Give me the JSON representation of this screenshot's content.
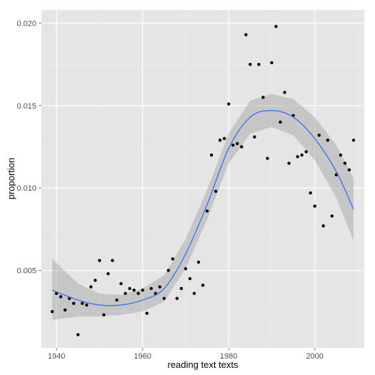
{
  "chart_data": {
    "type": "scatter",
    "xlabel": "reading text texts",
    "ylabel": "proportion",
    "xlim": [
      1936.5,
      2011.5
    ],
    "ylim": [
      0.0003,
      0.0208
    ],
    "x_ticks": [
      1940,
      1960,
      1980,
      2000
    ],
    "x_tick_labels": [
      "1940",
      "1960",
      "1980",
      "2000"
    ],
    "y_ticks": [
      0.005,
      0.01,
      0.015,
      0.02
    ],
    "y_tick_labels": [
      "0.005",
      "0.010",
      "0.015",
      "0.020"
    ],
    "grid": true,
    "colors": {
      "panel_background": "#e5e5e5",
      "grid_major": "#ffffff",
      "grid_minor": "#f2f2f2",
      "points": "#000000",
      "smooth_line": "#3366ff",
      "confidence_band": "#999999"
    },
    "points": [
      {
        "x": 1939,
        "y": 0.0025
      },
      {
        "x": 1940,
        "y": 0.0036
      },
      {
        "x": 1941,
        "y": 0.0034
      },
      {
        "x": 1942,
        "y": 0.0026
      },
      {
        "x": 1943,
        "y": 0.0033
      },
      {
        "x": 1944,
        "y": 0.003
      },
      {
        "x": 1945,
        "y": 0.0011
      },
      {
        "x": 1946,
        "y": 0.003
      },
      {
        "x": 1947,
        "y": 0.0029
      },
      {
        "x": 1948,
        "y": 0.004
      },
      {
        "x": 1949,
        "y": 0.0044
      },
      {
        "x": 1950,
        "y": 0.0056
      },
      {
        "x": 1951,
        "y": 0.0023
      },
      {
        "x": 1952,
        "y": 0.0048
      },
      {
        "x": 1953,
        "y": 0.0056
      },
      {
        "x": 1954,
        "y": 0.0032
      },
      {
        "x": 1955,
        "y": 0.0042
      },
      {
        "x": 1956,
        "y": 0.0036
      },
      {
        "x": 1957,
        "y": 0.0039
      },
      {
        "x": 1958,
        "y": 0.0038
      },
      {
        "x": 1959,
        "y": 0.0036
      },
      {
        "x": 1960,
        "y": 0.0038
      },
      {
        "x": 1961,
        "y": 0.0024
      },
      {
        "x": 1962,
        "y": 0.0039
      },
      {
        "x": 1963,
        "y": 0.0036
      },
      {
        "x": 1964,
        "y": 0.004
      },
      {
        "x": 1965,
        "y": 0.0033
      },
      {
        "x": 1966,
        "y": 0.005
      },
      {
        "x": 1967,
        "y": 0.0057
      },
      {
        "x": 1968,
        "y": 0.0033
      },
      {
        "x": 1969,
        "y": 0.0039
      },
      {
        "x": 1970,
        "y": 0.0051
      },
      {
        "x": 1971,
        "y": 0.0045
      },
      {
        "x": 1972,
        "y": 0.0036
      },
      {
        "x": 1973,
        "y": 0.0055
      },
      {
        "x": 1974,
        "y": 0.0041
      },
      {
        "x": 1975,
        "y": 0.0086
      },
      {
        "x": 1976,
        "y": 0.012
      },
      {
        "x": 1977,
        "y": 0.0098
      },
      {
        "x": 1978,
        "y": 0.0129
      },
      {
        "x": 1979,
        "y": 0.013
      },
      {
        "x": 1980,
        "y": 0.0151
      },
      {
        "x": 1981,
        "y": 0.0126
      },
      {
        "x": 1982,
        "y": 0.0127
      },
      {
        "x": 1983,
        "y": 0.0125
      },
      {
        "x": 1984,
        "y": 0.0193
      },
      {
        "x": 1985,
        "y": 0.0175
      },
      {
        "x": 1986,
        "y": 0.0131
      },
      {
        "x": 1987,
        "y": 0.0175
      },
      {
        "x": 1988,
        "y": 0.0155
      },
      {
        "x": 1989,
        "y": 0.0118
      },
      {
        "x": 1990,
        "y": 0.0176
      },
      {
        "x": 1991,
        "y": 0.0198
      },
      {
        "x": 1992,
        "y": 0.014
      },
      {
        "x": 1993,
        "y": 0.0158
      },
      {
        "x": 1994,
        "y": 0.0115
      },
      {
        "x": 1995,
        "y": 0.0144
      },
      {
        "x": 1996,
        "y": 0.0119
      },
      {
        "x": 1997,
        "y": 0.012
      },
      {
        "x": 1998,
        "y": 0.0122
      },
      {
        "x": 1999,
        "y": 0.0097
      },
      {
        "x": 2000,
        "y": 0.0089
      },
      {
        "x": 2001,
        "y": 0.0132
      },
      {
        "x": 2002,
        "y": 0.0077
      },
      {
        "x": 2003,
        "y": 0.0129
      },
      {
        "x": 2004,
        "y": 0.0083
      },
      {
        "x": 2005,
        "y": 0.0108
      },
      {
        "x": 2006,
        "y": 0.012
      },
      {
        "x": 2007,
        "y": 0.0115
      },
      {
        "x": 2008,
        "y": 0.0111
      },
      {
        "x": 2009,
        "y": 0.0129
      }
    ],
    "smooth": {
      "x": [
        1939,
        1945,
        1950,
        1955,
        1960,
        1965,
        1970,
        1975,
        1980,
        1985,
        1990,
        1995,
        2000,
        2005,
        2009
      ],
      "y": [
        0.0038,
        0.0032,
        0.0029,
        0.0029,
        0.0032,
        0.0039,
        0.006,
        0.009,
        0.0124,
        0.0143,
        0.0147,
        0.0143,
        0.013,
        0.011,
        0.0087
      ],
      "lower": [
        0.002,
        0.0022,
        0.0022,
        0.0023,
        0.0025,
        0.0031,
        0.0051,
        0.0081,
        0.0115,
        0.0133,
        0.0137,
        0.0132,
        0.0117,
        0.0094,
        0.0068
      ],
      "upper": [
        0.0057,
        0.0042,
        0.0036,
        0.0035,
        0.0039,
        0.0047,
        0.0069,
        0.0099,
        0.0133,
        0.0153,
        0.0157,
        0.0154,
        0.0143,
        0.0126,
        0.0106
      ]
    }
  }
}
